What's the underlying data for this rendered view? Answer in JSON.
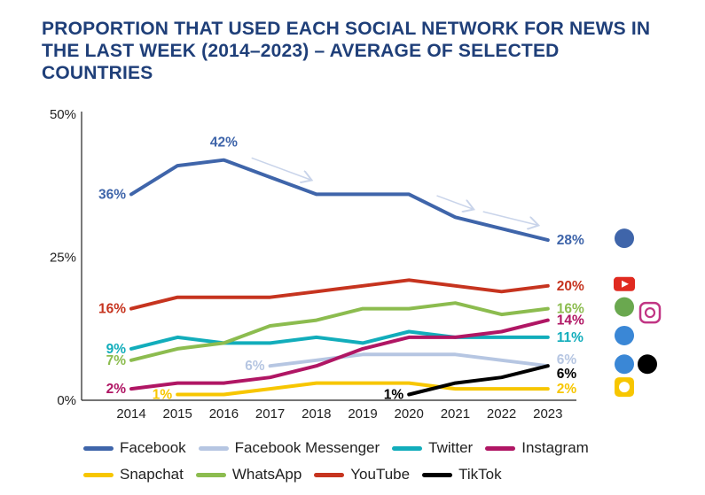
{
  "title": "PROPORTION THAT USED EACH SOCIAL NETWORK FOR NEWS IN THE LAST WEEK (2014–2023) – AVERAGE OF SELECTED COUNTRIES",
  "chart_data": {
    "type": "line",
    "title": "PROPORTION THAT USED EACH SOCIAL NETWORK FOR NEWS IN THE LAST WEEK (2014–2023) – AVERAGE OF SELECTED COUNTRIES",
    "x": [
      2014,
      2015,
      2016,
      2017,
      2018,
      2019,
      2020,
      2021,
      2022,
      2023
    ],
    "ylim": [
      0,
      50
    ],
    "yticks": [
      "0%",
      "25%",
      "50%"
    ],
    "grid": false,
    "legend_position": "bottom",
    "series": [
      {
        "name": "Facebook",
        "color": "#3f65aa",
        "values": [
          36,
          41,
          42,
          39,
          36,
          36,
          36,
          32,
          30,
          28
        ]
      },
      {
        "name": "Facebook Messenger",
        "color": "#b6c6e2",
        "values": [
          null,
          null,
          null,
          6,
          7,
          8,
          8,
          8,
          7,
          6
        ]
      },
      {
        "name": "Twitter",
        "color": "#12adbb",
        "values": [
          9,
          11,
          10,
          10,
          11,
          10,
          12,
          11,
          11,
          11
        ]
      },
      {
        "name": "Instagram",
        "color": "#b01664",
        "values": [
          2,
          3,
          3,
          4,
          6,
          9,
          11,
          11,
          12,
          14
        ]
      },
      {
        "name": "Snapchat",
        "color": "#f7c600",
        "values": [
          null,
          1,
          1,
          2,
          3,
          3,
          3,
          2,
          2,
          2
        ]
      },
      {
        "name": "WhatsApp",
        "color": "#8cbc4f",
        "values": [
          7,
          9,
          10,
          13,
          14,
          16,
          16,
          17,
          15,
          16
        ]
      },
      {
        "name": "YouTube",
        "color": "#c6341f",
        "values": [
          16,
          18,
          18,
          18,
          19,
          20,
          21,
          20,
          19,
          20
        ]
      },
      {
        "name": "TikTok",
        "color": "#000000",
        "values": [
          null,
          null,
          null,
          null,
          null,
          null,
          1,
          3,
          4,
          6
        ]
      }
    ],
    "annotations": [
      {
        "text": "36%",
        "x": 2014,
        "series": "Facebook",
        "color": "#3f65aa",
        "side": "left"
      },
      {
        "text": "42%",
        "x": 2016,
        "series": "Facebook",
        "color": "#3f65aa",
        "side": "above"
      },
      {
        "text": "28%",
        "x": 2023,
        "series": "Facebook",
        "color": "#3f65aa",
        "side": "right"
      },
      {
        "text": "16%",
        "x": 2014,
        "series": "YouTube",
        "color": "#c6341f",
        "side": "left"
      },
      {
        "text": "20%",
        "x": 2023,
        "series": "YouTube",
        "color": "#c6341f",
        "side": "right"
      },
      {
        "text": "9%",
        "x": 2014,
        "series": "Twitter",
        "color": "#12adbb",
        "side": "left"
      },
      {
        "text": "11%",
        "x": 2023,
        "series": "Twitter",
        "color": "#12adbb",
        "side": "right"
      },
      {
        "text": "7%",
        "x": 2014,
        "series": "WhatsApp",
        "color": "#8cbc4f",
        "side": "left"
      },
      {
        "text": "16%",
        "x": 2023,
        "series": "WhatsApp",
        "color": "#8cbc4f",
        "side": "right"
      },
      {
        "text": "2%",
        "x": 2014,
        "series": "Instagram",
        "color": "#b01664",
        "side": "left"
      },
      {
        "text": "14%",
        "x": 2023,
        "series": "Instagram",
        "color": "#b01664",
        "side": "right"
      },
      {
        "text": "1%",
        "x": 2015,
        "series": "Snapchat",
        "color": "#f7c600",
        "side": "left"
      },
      {
        "text": "2%",
        "x": 2023,
        "series": "Snapchat",
        "color": "#f7c600",
        "side": "right"
      },
      {
        "text": "6%",
        "x": 2017,
        "series": "Facebook Messenger",
        "color": "#b6c6e2",
        "side": "left"
      },
      {
        "text": "6%",
        "x": 2023,
        "series": "Facebook Messenger",
        "color": "#b6c6e2",
        "side": "right-up"
      },
      {
        "text": "1%",
        "x": 2020,
        "series": "TikTok",
        "color": "#000000",
        "side": "left"
      },
      {
        "text": "6%",
        "x": 2023,
        "series": "TikTok",
        "color": "#000000",
        "side": "right-down"
      }
    ],
    "trend_arrows": [
      [
        2016.6,
        2017.9
      ],
      [
        2020.6,
        2021.4
      ],
      [
        2021.6,
        2022.8
      ]
    ],
    "icons": [
      {
        "name": "facebook-icon",
        "color": "#3f65aa"
      },
      {
        "name": "youtube-icon",
        "color": "#e02a20"
      },
      {
        "name": "whatsapp-icon",
        "color": "#6aa84f"
      },
      {
        "name": "instagram-icon",
        "color": "#c13584"
      },
      {
        "name": "twitter-icon",
        "color": "#3a87d6"
      },
      {
        "name": "messenger-icon",
        "color": "#3a87d6"
      },
      {
        "name": "tiktok-icon",
        "color": "#000000"
      },
      {
        "name": "snapchat-icon",
        "color": "#f7c600"
      }
    ]
  }
}
